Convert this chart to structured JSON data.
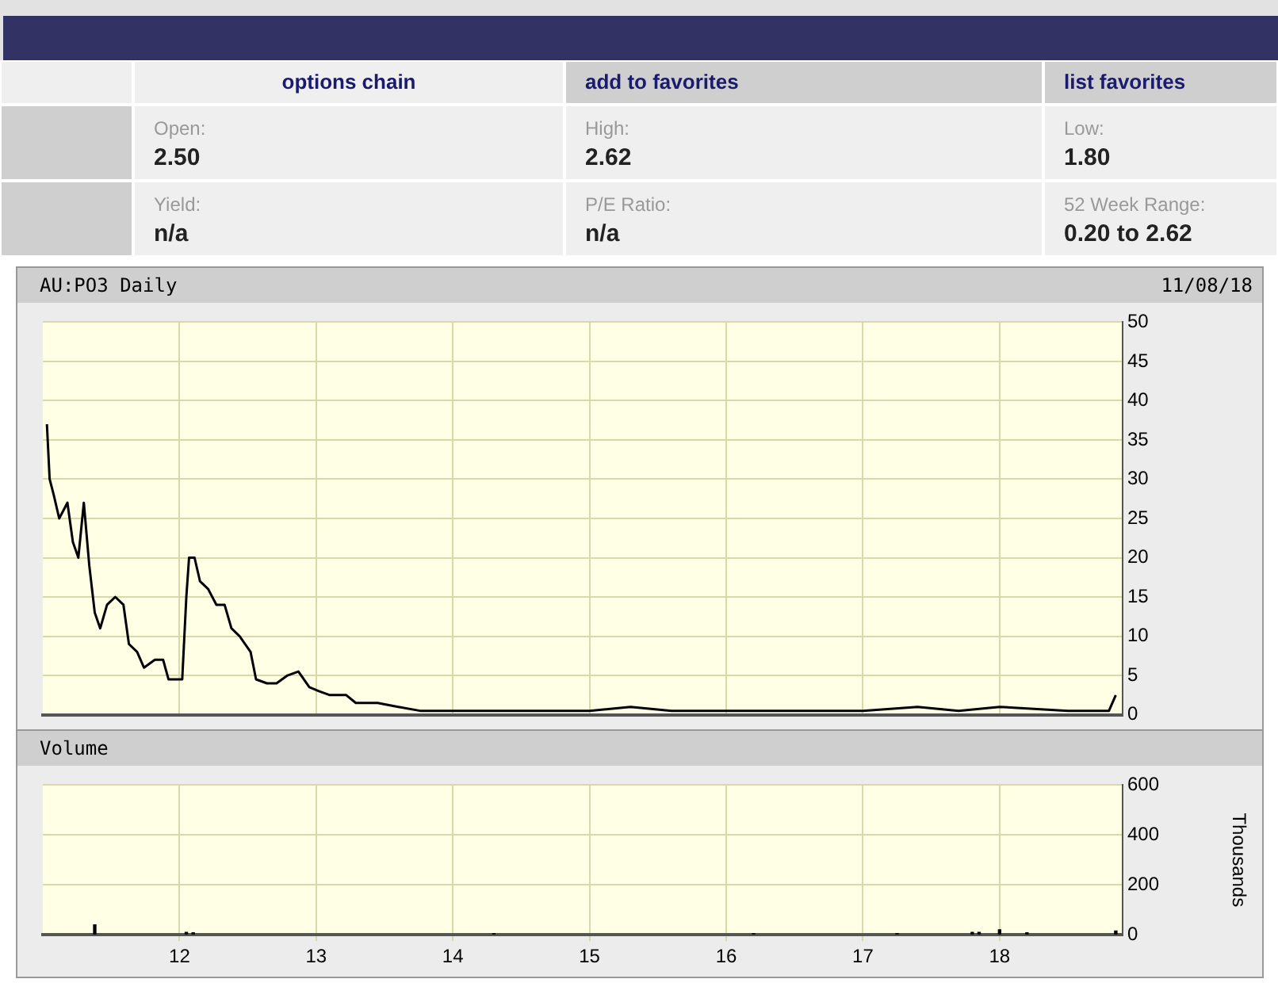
{
  "chart_data": [
    {
      "type": "other",
      "annotations": [
        "options chain",
        "add to favorites",
        "list favorites",
        "Open:",
        "2.50",
        "High:",
        "2.62",
        "Low:",
        "1.80",
        "Yield:",
        "n/a",
        "P/E Ratio:",
        "n/a",
        "52 Week Range:",
        "0.20 to 2.62"
      ]
    },
    {
      "type": "line",
      "title": "AU:PO3 Daily",
      "annotations": [
        "11/08/18"
      ],
      "color": "#000000",
      "x": [
        2011.03,
        2011.05,
        2011.08,
        2011.12,
        2011.18,
        2011.22,
        2011.26,
        2011.3,
        2011.34,
        2011.38,
        2011.42,
        2011.47,
        2011.53,
        2011.59,
        2011.63,
        2011.69,
        2011.74,
        2011.82,
        2011.88,
        2011.92,
        2012.02,
        2012.05,
        2012.07,
        2012.11,
        2012.15,
        2012.21,
        2012.27,
        2012.33,
        2012.38,
        2012.44,
        2012.52,
        2012.56,
        2012.64,
        2012.71,
        2012.79,
        2012.87,
        2012.95,
        2013.02,
        2013.1,
        2013.22,
        2013.29,
        2013.45,
        2013.6,
        2013.76,
        2014.0,
        2014.5,
        2015.0,
        2015.3,
        2015.6,
        2016.0,
        2016.4,
        2017.0,
        2017.4,
        2017.7,
        2018.0,
        2018.5,
        2018.8,
        2018.85
      ],
      "values": [
        37,
        30,
        28,
        25,
        27,
        22,
        20,
        27,
        19,
        13,
        11,
        14,
        15,
        14,
        9,
        8,
        6,
        7,
        7,
        4.5,
        4.5,
        15,
        20,
        20,
        17,
        16,
        14,
        14,
        11,
        10,
        8,
        4.5,
        4,
        4,
        5,
        5.5,
        3.5,
        3,
        2.5,
        2.5,
        1.5,
        1.5,
        1,
        0.5,
        0.5,
        0.5,
        0.5,
        1,
        0.5,
        0.5,
        0.5,
        0.5,
        1,
        0.5,
        1,
        0.5,
        0.5,
        2.5
      ],
      "xlim": [
        2011.0,
        2018.9
      ],
      "xticks": [
        {
          "value": 2012,
          "label": null
        },
        {
          "value": 2013,
          "label": null
        },
        {
          "value": 2014,
          "label": null
        },
        {
          "value": 2015,
          "label": null
        },
        {
          "value": 2016,
          "label": null
        },
        {
          "value": 2017,
          "label": null
        },
        {
          "value": 2018,
          "label": null
        }
      ],
      "ylim": [
        0,
        50
      ],
      "yticks": [
        0,
        5,
        10,
        15,
        20,
        25,
        30,
        35,
        40,
        45,
        50
      ],
      "grid": true,
      "tick_labels": "y"
    },
    {
      "type": "bar",
      "title": "Volume",
      "ylabel": "Thousands",
      "color": "#000000",
      "x": [
        2011.38,
        2012.05,
        2012.1,
        2014.3,
        2016.2,
        2017.25,
        2017.8,
        2017.85,
        2018.0,
        2018.2,
        2018.85
      ],
      "values": [
        40,
        10,
        8,
        5,
        5,
        5,
        10,
        10,
        20,
        8,
        15
      ],
      "xlim": [
        2011.0,
        2018.9
      ],
      "xticks": [
        {
          "value": 2012,
          "label": "12"
        },
        {
          "value": 2013,
          "label": "13"
        },
        {
          "value": 2014,
          "label": "14"
        },
        {
          "value": 2015,
          "label": "15"
        },
        {
          "value": 2016,
          "label": "16"
        },
        {
          "value": 2017,
          "label": "17"
        },
        {
          "value": 2018,
          "label": "18"
        }
      ],
      "ylim": [
        0,
        600
      ],
      "yticks": [
        0,
        200,
        400,
        600
      ],
      "grid": true
    }
  ]
}
